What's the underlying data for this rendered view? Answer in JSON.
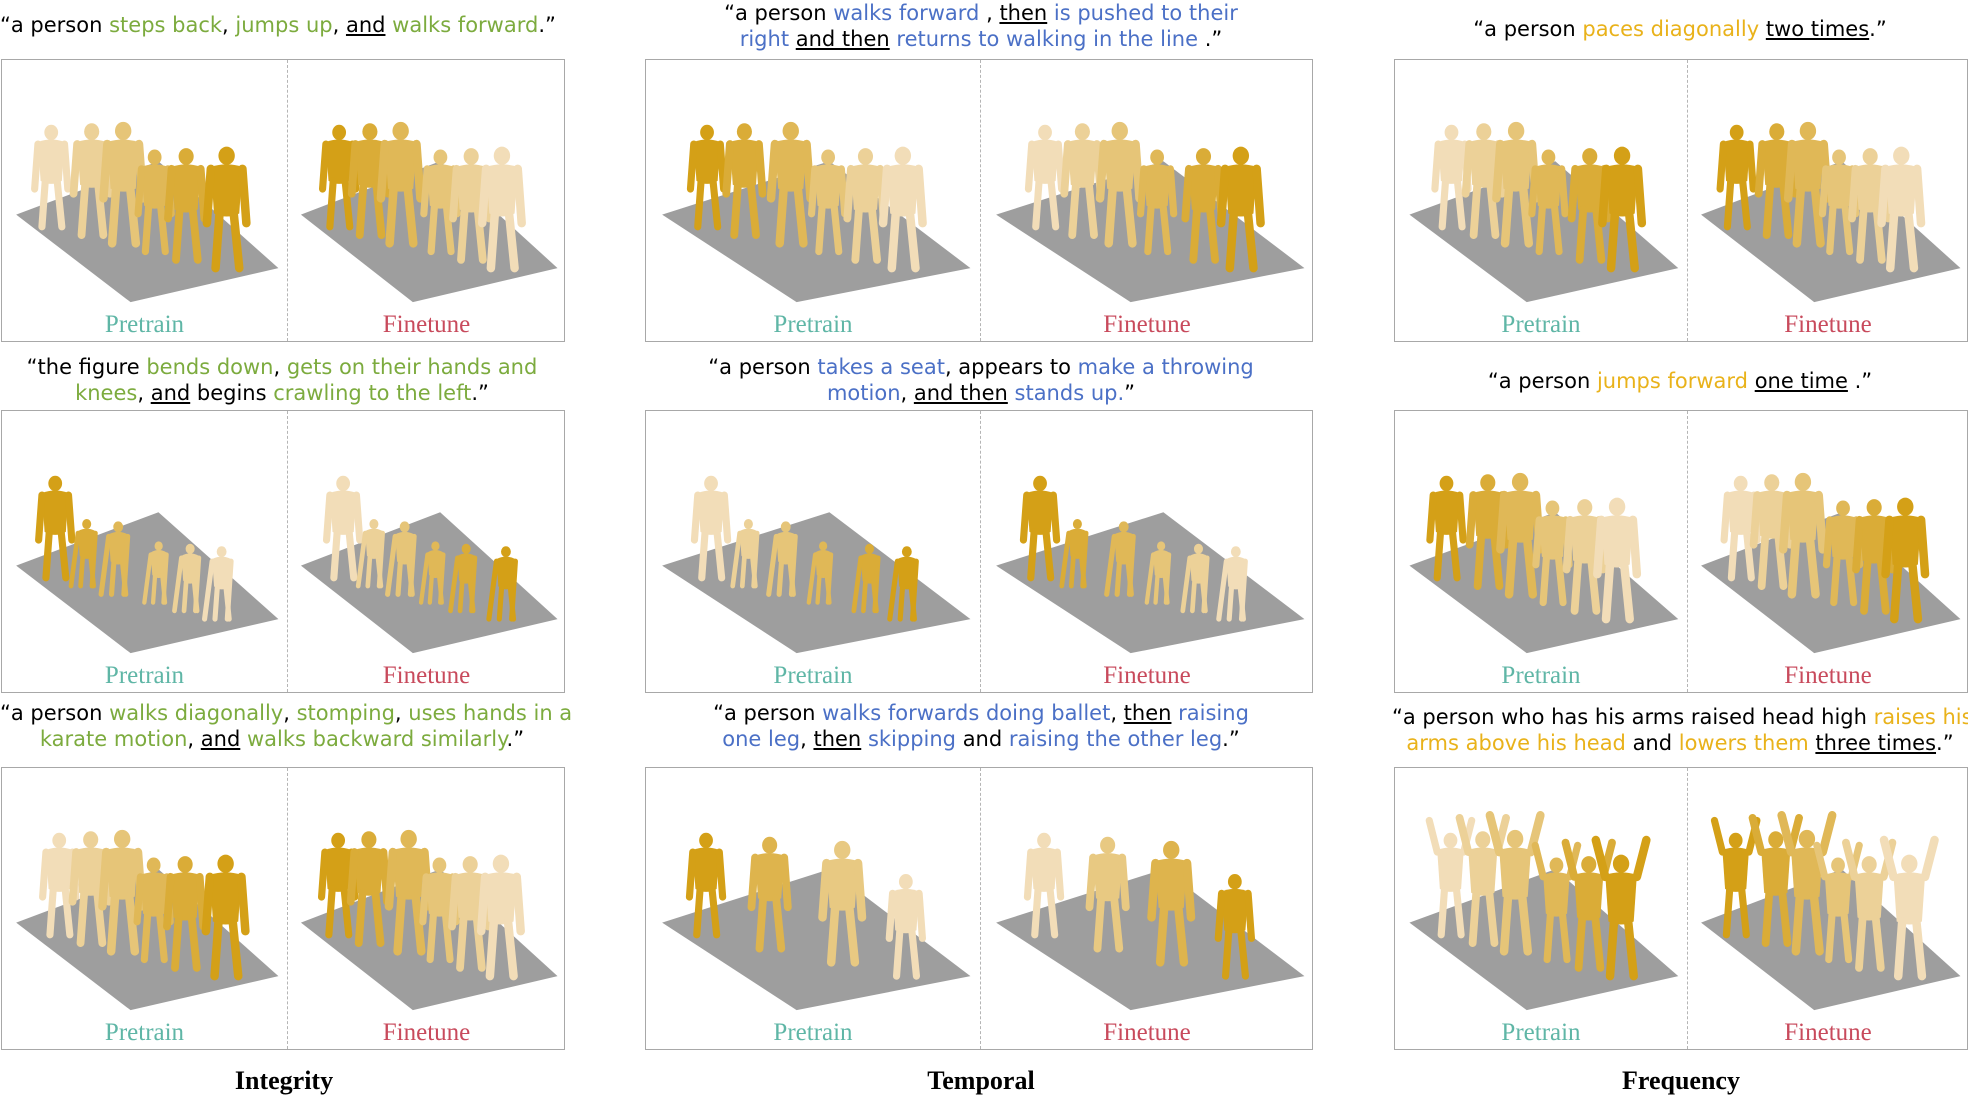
{
  "columns": {
    "integrity": "Integrity",
    "temporal": "Temporal",
    "frequency": "Frequency"
  },
  "labels": {
    "pretrain": "Pretrain",
    "finetune": "Finetune"
  },
  "colors": {
    "integrity_highlight": "#7cab3e",
    "temporal_highlight": "#4b70c6",
    "frequency_highlight": "#e9b21a",
    "pretrain_label": "#5fb6a6",
    "finetune_label": "#c84a5c",
    "floor": "#9a9a9a",
    "figure_dark": "#d4a017",
    "figure_light": "#f2ddb8"
  },
  "captions": {
    "int1": {
      "a": "“a person ",
      "b": "steps back",
      "c": ", ",
      "d": "jumps up",
      "e": ", ",
      "f": "and",
      "g": " ",
      "h": "walks forward",
      "i": ".”"
    },
    "int2": {
      "l1a": "“the figure ",
      "l1b": "bends down",
      "l1c": ", ",
      "l1d": "gets on their hands and",
      "l2a": "knees",
      "l2b": ", ",
      "l2c": "and",
      "l2d": " begins ",
      "l2e": "crawling to the left",
      "l2f": ".”"
    },
    "int3": {
      "l1a": "“a person ",
      "l1b": "walks diagonally",
      "l1c": ", ",
      "l1d": "stomping",
      "l1e": ", ",
      "l1f": "uses hands in a",
      "l2a": "karate motion",
      "l2b": ", ",
      "l2c": "and",
      "l2d": " ",
      "l2e": "walks backward similarly",
      "l2f": ".”"
    },
    "tmp1": {
      "l1a": "“a person ",
      "l1b": "walks forward ",
      "l1c": ", ",
      "l1d": "then",
      "l1e": " ",
      "l1f": "is pushed to their",
      "l2a": "right",
      "l2b": " ",
      "l2c": "and then",
      "l2d": " ",
      "l2e": "returns to walking in the line",
      "l2f": " .”"
    },
    "tmp2": {
      "l1a": "“a person ",
      "l1b": "takes a seat",
      "l1c": ", appears to ",
      "l1d": "make a throwing",
      "l2a": "motion",
      "l2b": ", ",
      "l2c": "and then",
      "l2d": " ",
      "l2e": "stands up.",
      "l2f": "”"
    },
    "tmp3": {
      "l1a": "“a person ",
      "l1b": "walks forwards doing ballet",
      "l1c": ", ",
      "l1d": "then",
      "l1e": " ",
      "l1f": "raising",
      "l2a": "one leg",
      "l2b": ", ",
      "l2c": "then",
      "l2d": " ",
      "l2e": "skipping",
      "l2f": " and ",
      "l2g": "raising the other leg",
      "l2h": ".”"
    },
    "frq1": {
      "a": "“a person ",
      "b": "paces diagonally",
      "c": " ",
      "d": "two times",
      "e": ".”"
    },
    "frq2": {
      "a": "“a person ",
      "b": "jumps forward",
      "c": " ",
      "d": "one time",
      "e": " .”"
    },
    "frq3": {
      "l1a": "“a person who has his arms raised head high ",
      "l1b": "raises his",
      "l2a": "arms above his head",
      "l2b": " and ",
      "l2c": "lowers them",
      "l2d": " ",
      "l2e": "three times",
      "l2f": ".”"
    }
  }
}
